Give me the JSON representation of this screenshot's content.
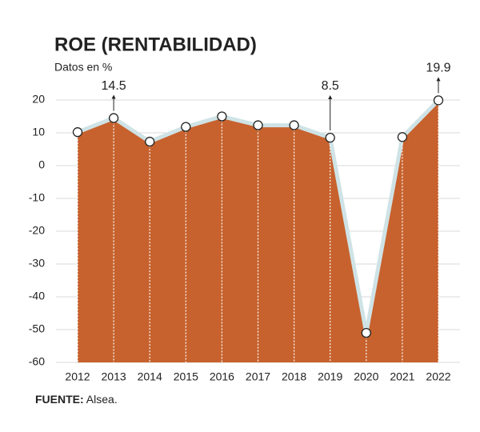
{
  "chart_data": {
    "type": "area",
    "title": "ROE (RENTABILIDAD)",
    "subtitle": "Datos en %",
    "categories": [
      "2012",
      "2013",
      "2014",
      "2015",
      "2016",
      "2017",
      "2018",
      "2019",
      "2020",
      "2021",
      "2022"
    ],
    "values": [
      10.2,
      14.5,
      7.3,
      11.8,
      15.0,
      12.3,
      12.3,
      8.5,
      -51.0,
      8.7,
      19.9
    ],
    "value_labels": [
      null,
      "14.5",
      null,
      null,
      null,
      null,
      null,
      "8.5",
      null,
      null,
      "19.9"
    ],
    "color": "#c7622e",
    "outline_color": "#cfe3e6",
    "ylim": [
      -60,
      20
    ],
    "yticks": [
      20,
      10,
      0,
      -10,
      -20,
      -30,
      -40,
      -50,
      -60
    ],
    "grid": true,
    "source": {
      "label": "FUENTE:",
      "text": "Alsea."
    }
  }
}
